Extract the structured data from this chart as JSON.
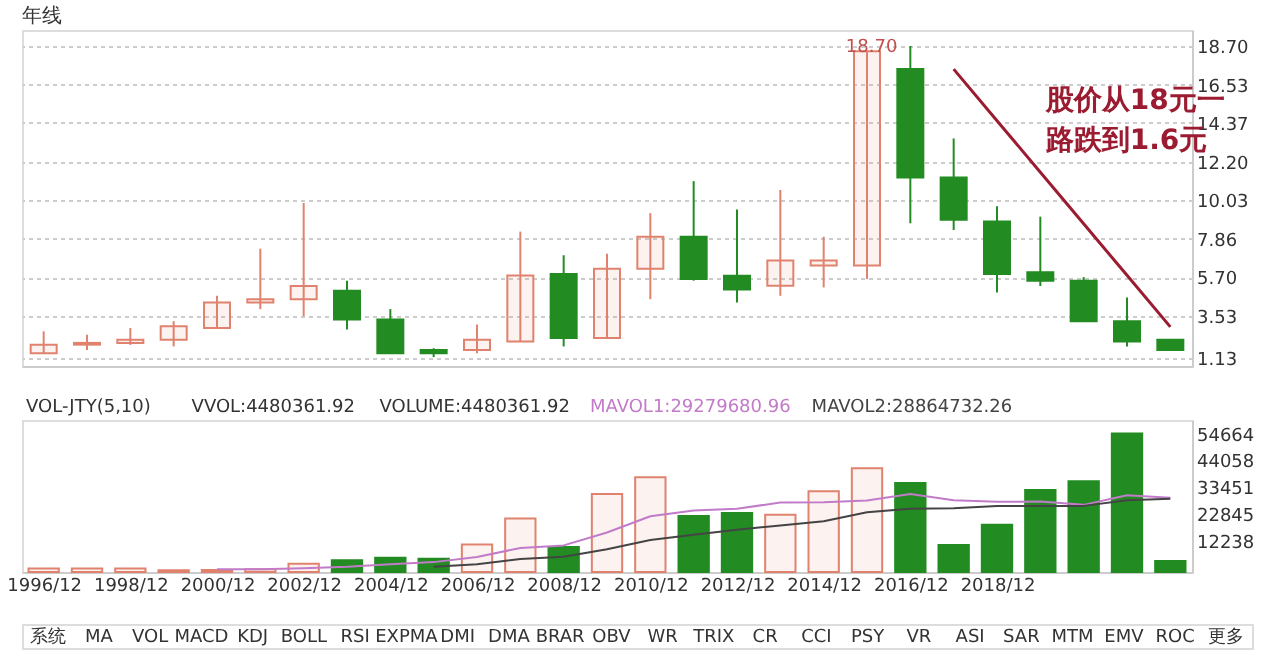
{
  "chart_data": [
    {
      "type": "candlestick",
      "title": "年线",
      "categories": [
        "1996/12",
        null,
        "1998/12",
        null,
        "2000/12",
        null,
        "2002/12",
        null,
        "2004/12",
        null,
        "2006/12",
        null,
        "2008/12",
        null,
        "2010/12",
        null,
        "2012/12",
        null,
        "2014/12",
        null,
        "2016/12",
        null,
        "2018/12",
        null,
        null,
        null,
        null
      ],
      "ohlc": [
        [
          1.42,
          2.65,
          1.42,
          1.89
        ],
        [
          1.9,
          2.46,
          1.6,
          2.0
        ],
        [
          1.99,
          2.84,
          1.89,
          2.18
        ],
        [
          2.18,
          3.22,
          1.8,
          2.94
        ],
        [
          2.84,
          4.65,
          2.84,
          4.27
        ],
        [
          4.27,
          7.3,
          3.9,
          4.46
        ],
        [
          4.46,
          9.87,
          3.5,
          5.2
        ],
        [
          4.93,
          5.5,
          2.75,
          3.32
        ],
        [
          3.32,
          3.9,
          1.42,
          1.42
        ],
        [
          1.6,
          1.7,
          1.2,
          1.42
        ],
        [
          1.6,
          3.03,
          1.42,
          2.18
        ],
        [
          2.08,
          8.26,
          2.08,
          5.79
        ],
        [
          5.88,
          6.93,
          1.8,
          2.27
        ],
        [
          2.27,
          7.02,
          2.27,
          6.17
        ],
        [
          6.17,
          9.3,
          4.46,
          7.97
        ],
        [
          7.97,
          11.1,
          5.5,
          5.6
        ],
        [
          5.78,
          9.5,
          4.27,
          5.0
        ],
        [
          5.21,
          10.6,
          4.65,
          6.64
        ],
        [
          6.36,
          7.97,
          5.12,
          6.64
        ],
        [
          6.36,
          18.4,
          5.6,
          18.4
        ],
        [
          17.4,
          18.7,
          8.73,
          11.3
        ],
        [
          11.3,
          13.5,
          8.35,
          8.92
        ],
        [
          8.83,
          9.68,
          4.84,
          5.88
        ],
        [
          5.98,
          9.1,
          5.2,
          5.5
        ],
        [
          5.5,
          5.7,
          3.22,
          3.22
        ],
        [
          3.22,
          4.55,
          1.8,
          2.08
        ],
        [
          2.18,
          2.18,
          1.6,
          1.6
        ]
      ],
      "colors": [
        "#e0826e",
        "#e0826e",
        "#e0826e",
        "#e0826e",
        "#e0826e",
        "#e0826e",
        "#e0826e",
        "#228b22",
        "#228b22",
        "#228b22",
        "#e0826e",
        "#e0826e",
        "#228b22",
        "#e0826e",
        "#e0826e",
        "#228b22",
        "#228b22",
        "#e0826e",
        "#e0826e",
        "#e0826e",
        "#228b22",
        "#228b22",
        "#228b22",
        "#228b22",
        "#228b22",
        "#228b22",
        "#228b22"
      ],
      "ylim": [
        0.7,
        19.6
      ],
      "yticks": [
        {
          "value": 1.13,
          "label": "1.13"
        },
        {
          "value": 3.53,
          "label": "3.53"
        },
        {
          "value": 5.7,
          "label": "5.70"
        },
        {
          "value": 7.86,
          "label": "7.86"
        },
        {
          "value": 10.03,
          "label": "10.03"
        },
        {
          "value": 12.2,
          "label": "12.20"
        },
        {
          "value": 14.37,
          "label": "14.37"
        },
        {
          "value": 16.53,
          "label": "16.53"
        },
        {
          "value": 18.7,
          "label": "18.70"
        }
      ],
      "series": [
        {
          "type": "line",
          "color": "#9b1b30",
          "values": [
            null,
            null,
            null,
            null,
            null,
            null,
            null,
            null,
            null,
            null,
            null,
            null,
            null,
            null,
            null,
            null,
            null,
            null,
            null,
            null,
            null,
            17.4,
            14.5,
            11.6,
            8.7,
            5.8,
            2.9
          ]
        }
      ],
      "grid": "y",
      "tick_labels": "y",
      "annotations": [
        "18.70",
        "股价从18元一路跌到1.6元"
      ]
    },
    {
      "type": "bar",
      "categories": [
        "1996/12",
        null,
        "1998/12",
        null,
        "2000/12",
        null,
        "2002/12",
        null,
        "2004/12",
        null,
        "2006/12",
        null,
        "2008/12",
        null,
        "2010/12",
        null,
        "2012/12",
        null,
        "2014/12",
        null,
        "2016/12",
        null,
        "2018/12",
        null,
        null,
        null,
        null
      ],
      "series": [
        {
          "type": "bar",
          "colors": [
            "#e0826e",
            "#e0826e",
            "#e0826e",
            "#e0826e",
            "#e0826e",
            "#e0826e",
            "#e0826e",
            "#228b22",
            "#228b22",
            "#228b22",
            "#e0826e",
            "#e0826e",
            "#228b22",
            "#e0826e",
            "#e0826e",
            "#228b22",
            "#228b22",
            "#e0826e",
            "#e0826e",
            "#e0826e",
            "#228b22",
            "#228b22",
            "#228b22",
            "#228b22",
            "#228b22",
            "#228b22",
            "#228b22"
          ],
          "values": [
            1400,
            1400,
            1400,
            700,
            800,
            1100,
            3300,
            4600,
            5600,
            5200,
            10900,
            21100,
            9900,
            30800,
            37400,
            22100,
            23300,
            22600,
            31900,
            41000,
            35100,
            10700,
            18700,
            32400,
            35800,
            54664,
            4300
          ]
        },
        {
          "type": "line",
          "name": "MAVOL1:29279680.96",
          "color": "#c27bc9",
          "values": [
            null,
            null,
            null,
            null,
            1100,
            1100,
            1500,
            2100,
            3100,
            3900,
            5900,
            9500,
            10500,
            15600,
            22000,
            24300,
            25000,
            27400,
            27500,
            28200,
            30800,
            28300,
            27700,
            27800,
            26500,
            30300,
            29300
          ]
        },
        {
          "type": "line",
          "name": "MAVOL2:28864732.26",
          "color": "#444444",
          "values": [
            null,
            null,
            null,
            null,
            null,
            null,
            null,
            null,
            null,
            2100,
            3100,
            5100,
            6000,
            9000,
            12600,
            14700,
            16700,
            18400,
            20000,
            23600,
            25000,
            25200,
            26100,
            26100,
            26100,
            28300,
            28900
          ]
        }
      ],
      "ylim": [
        0,
        60000
      ],
      "yticks": [
        12238,
        22845,
        33451,
        44058,
        54664
      ],
      "annotations": [
        "VOL-JTY(5,10)",
        "VVOL:4480361.92",
        "VOLUME:4480361.92"
      ]
    },
    {
      "type": "other",
      "annotations": [
        "系统",
        "MA",
        "VOL",
        "MACD",
        "KDJ",
        "BOLL",
        "RSI",
        "EXPMA",
        "DMI",
        "DMA",
        "BRAR",
        "OBV",
        "WR",
        "TRIX",
        "CR",
        "CCI",
        "PSY",
        "VR",
        "ASI",
        "SAR",
        "MTM",
        "EMV",
        "ROC",
        "更多"
      ]
    }
  ]
}
